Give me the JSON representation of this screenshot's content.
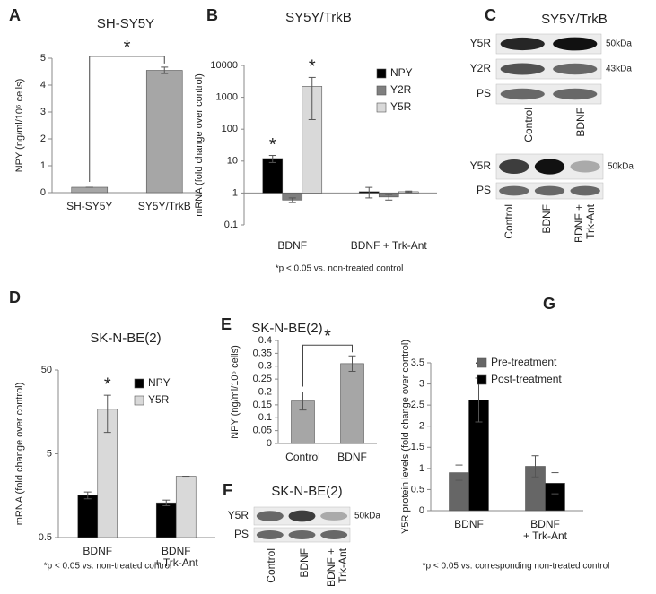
{
  "chart_data": [
    {
      "type": "bar",
      "letter": "A",
      "title": "SH-SY5Y",
      "ylabel": "NPY (ng/ml/10⁶ cells)",
      "categories": [
        "SH-SY5Y",
        "SY5Y/TrkB"
      ],
      "values": [
        0.2,
        4.55
      ],
      "errors": [
        0,
        0.12
      ],
      "color": "#a6a6a6",
      "ylim": [
        0,
        5
      ],
      "yticks": [
        0,
        1,
        2,
        3,
        4,
        5
      ],
      "annotations": [
        "*"
      ]
    },
    {
      "type": "bar",
      "letter": "B",
      "title": "SY5Y/TrkB",
      "ylabel": "mRNA (fold change over control)",
      "log_scale": true,
      "bar_base": 1,
      "categories": [
        "BDNF",
        "BDNF + Trk-Ant"
      ],
      "series": [
        {
          "name": "NPY",
          "color": "#000000",
          "values": [
            12,
            1.1
          ],
          "errors": [
            3,
            0.4
          ]
        },
        {
          "name": "Y2R",
          "color": "#7f7f7f",
          "values": [
            0.6,
            0.75
          ],
          "errors": [
            0.1,
            0.15
          ]
        },
        {
          "name": "Y5R",
          "color": "#d9d9d9",
          "values": [
            2200,
            1.1
          ],
          "errors": [
            2000,
            0.05
          ]
        }
      ],
      "ylim": [
        0.1,
        10000
      ],
      "yticks": [
        0.1,
        1,
        10,
        100,
        1000,
        10000
      ],
      "legend": "upper right",
      "annotations": [
        "*",
        "*"
      ],
      "footnote": "*p < 0.05 vs. non-treated control"
    },
    {
      "type": "bar",
      "letter": "D",
      "title": "SK-N-BE(2)",
      "ylabel": "mRNA (fold change over control)",
      "log_scale": true,
      "categories": [
        "BDNF",
        "BDNF + Trk-Ant"
      ],
      "series": [
        {
          "name": "NPY",
          "color": "#000000",
          "values": [
            1.6,
            1.3
          ],
          "errors": [
            0.15,
            0.1
          ]
        },
        {
          "name": "Y5R",
          "color": "#d9d9d9",
          "values": [
            17,
            2.7
          ],
          "errors": [
            8,
            0
          ]
        }
      ],
      "ylim": [
        0.5,
        50
      ],
      "yticks": [
        0.5,
        5,
        50
      ],
      "legend": "upper right",
      "annotations": [
        "*"
      ],
      "footnote": "*p < 0.05 vs. non-treated control"
    },
    {
      "type": "bar",
      "letter": "E",
      "title": "SK-N-BE(2)",
      "ylabel": "NPY (ng/ml/10⁶ cells)",
      "categories": [
        "Control",
        "BDNF"
      ],
      "values": [
        0.165,
        0.31
      ],
      "errors": [
        0.035,
        0.03
      ],
      "color": "#a6a6a6",
      "ylim": [
        0,
        0.4
      ],
      "yticks": [
        0,
        0.05,
        0.1,
        0.15,
        0.2,
        0.25,
        0.3,
        0.35,
        0.4
      ],
      "annotations": [
        "*"
      ]
    },
    {
      "type": "bar",
      "letter": "G",
      "ylabel": "Y5R protein levels (fold change over control)",
      "categories": [
        "BDNF",
        "BDNF + Trk-Ant"
      ],
      "series": [
        {
          "name": "Pre-treatment",
          "color": "#666666",
          "values": [
            0.9,
            1.05
          ],
          "errors": [
            0.18,
            0.25
          ]
        },
        {
          "name": "Post-treatment",
          "color": "#000000",
          "values": [
            2.62,
            0.65
          ],
          "errors": [
            0.52,
            0.25
          ]
        }
      ],
      "ylim": [
        0,
        3.5
      ],
      "yticks": [
        0,
        0.5,
        1,
        1.5,
        2,
        2.5,
        3,
        3.5
      ],
      "legend": "upper right",
      "annotations": [
        "*"
      ],
      "footnote": "*p < 0.05 vs. corresponding non-treated control"
    }
  ],
  "blots": [
    {
      "letter": "C",
      "title": "SY5Y/TrkB",
      "upper": {
        "rows": [
          "Y5R",
          "Y2R",
          "PS"
        ],
        "sizes": [
          "50kDa",
          "43kDa"
        ],
        "lanes": [
          "Control",
          "BDNF"
        ]
      },
      "lower": {
        "rows": [
          "Y5R",
          "PS"
        ],
        "sizes": [
          "50kDa"
        ],
        "lanes": [
          "Control",
          "BDNF",
          "BDNF + Trk-Ant"
        ]
      }
    },
    {
      "letter": "F",
      "title": "SK-N-BE(2)",
      "upper": {
        "rows": [
          "Y5R",
          "PS"
        ],
        "sizes": [
          "50kDa"
        ],
        "lanes": [
          "Control",
          "BDNF",
          "BDNF + Trk-Ant"
        ]
      }
    }
  ]
}
